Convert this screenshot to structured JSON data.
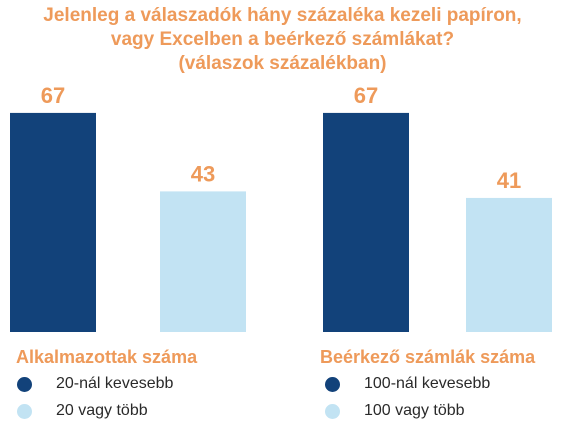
{
  "chart_data": {
    "type": "bar",
    "title": [
      "Jelenleg a válaszadók hány százaléka kezeli papíron,",
      "vagy Excelben a beérkező számlákat?",
      "(válaszok százalékban)"
    ],
    "ylim": [
      0,
      100
    ],
    "grid": false,
    "value_label_color": "#EE9A5A",
    "groups": [
      {
        "name": "Alkalmazottak száma",
        "bars": [
          {
            "label": "20-nál kevesebb",
            "value": 67,
            "color": "#12427A"
          },
          {
            "label": "20 vagy több",
            "value": 43,
            "color": "#C2E3F3"
          }
        ]
      },
      {
        "name": "Beérkező számlák száma",
        "bars": [
          {
            "label": "100-nál kevesebb",
            "value": 67,
            "color": "#12427A"
          },
          {
            "label": "100 vagy több",
            "value": 41,
            "color": "#C2E3F3"
          }
        ]
      }
    ]
  }
}
